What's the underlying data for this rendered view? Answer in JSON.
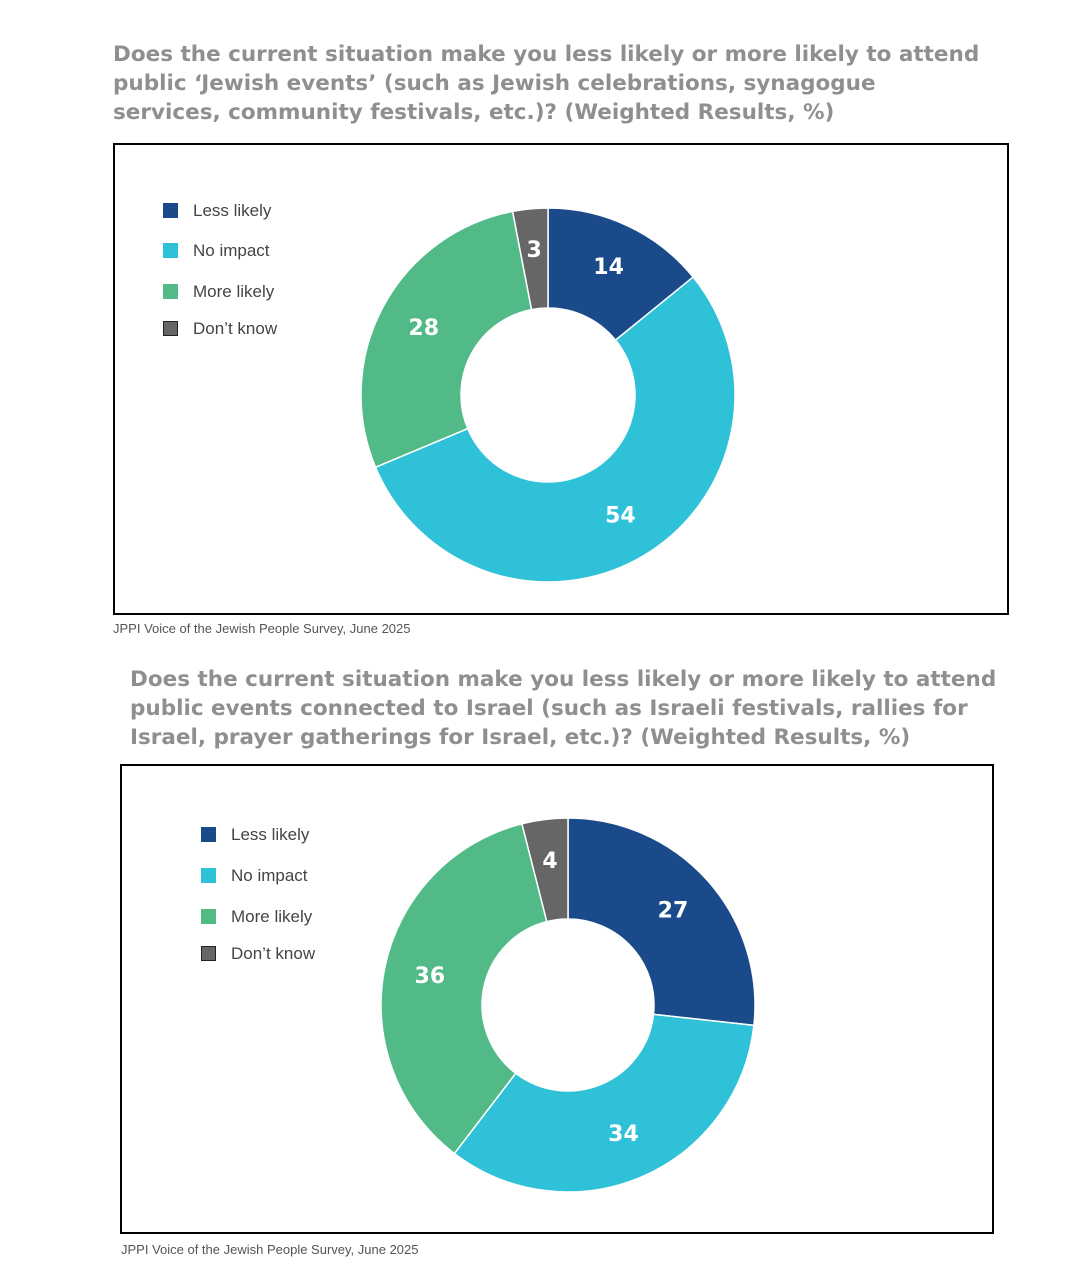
{
  "colors": {
    "less_likely": "#1a4a8a",
    "no_impact": "#2fc1d8",
    "more_likely": "#52ba86",
    "dont_know": "#666666",
    "title": "#8f8f8f"
  },
  "chart_data": [
    {
      "type": "pie",
      "variant": "donut",
      "title": "Does the current situation make you less likely or more likely to attend\npublic ‘Jewish events’ (such as Jewish celebrations, synagogue\nservices, community festivals, etc.)?  (Weighted Results, %)",
      "legend_position": "top-left",
      "slices": [
        {
          "label": "Less likely",
          "value": 14,
          "color": "#1a4a8a"
        },
        {
          "label": "No impact",
          "value": 54,
          "color": "#2fc1d8"
        },
        {
          "label": "More likely",
          "value": 28,
          "color": "#52ba86"
        },
        {
          "label": "Don’t know",
          "value": 3,
          "color": "#666666"
        }
      ],
      "source": "JPPI Voice of the Jewish People Survey, June 2025"
    },
    {
      "type": "pie",
      "variant": "donut",
      "title": "Does the current situation make you less likely or more likely to attend\npublic events connected to Israel (such as Israeli festivals, rallies for\nIsrael, prayer gatherings for Israel, etc.)? (Weighted Results, %)",
      "legend_position": "top-left",
      "slices": [
        {
          "label": "Less likely",
          "value": 27,
          "color": "#1a4a8a"
        },
        {
          "label": "No impact",
          "value": 34,
          "color": "#2fc1d8"
        },
        {
          "label": "More likely",
          "value": 36,
          "color": "#52ba86"
        },
        {
          "label": "Don’t know",
          "value": 4,
          "color": "#666666"
        }
      ],
      "source": "JPPI Voice of the Jewish People Survey, June 2025"
    }
  ]
}
